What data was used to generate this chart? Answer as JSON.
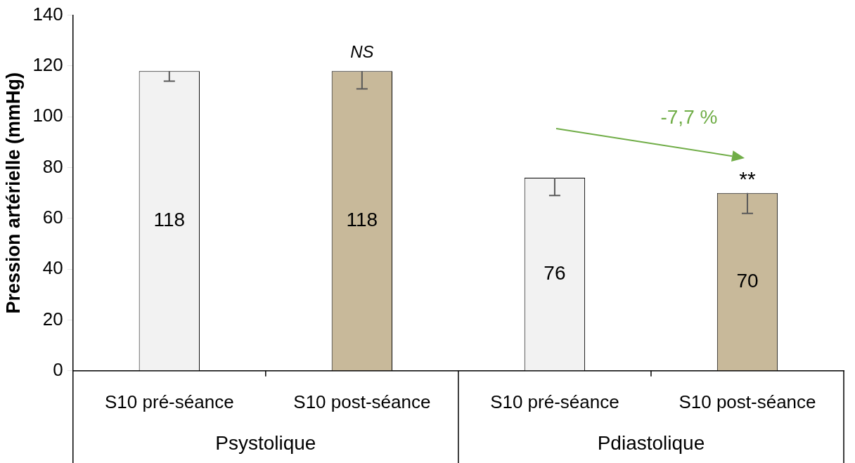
{
  "chart_data": {
    "type": "bar",
    "ylabel": "Pression artérielle (mmHg)",
    "categories": [
      "S10 pré-séance",
      "S10 post-séance",
      "S10 pré-séance",
      "S10 post-séance"
    ],
    "values": [
      118,
      118,
      76,
      70
    ],
    "colors": [
      "#f2f2f2",
      "#c8b99a",
      "#f2f2f2",
      "#c8b99a"
    ],
    "errors": [
      [
        114,
        118
      ],
      [
        111,
        118
      ],
      [
        69,
        76
      ],
      [
        62,
        70
      ]
    ],
    "ylim": [
      0,
      140
    ],
    "yticks": [
      0,
      20,
      40,
      60,
      80,
      100,
      120,
      140
    ],
    "grid": false,
    "legend": false,
    "data_labels": true,
    "annotations": [
      "NS",
      "**",
      "-7,7 %",
      "Psystolique",
      "Pdiastolique"
    ]
  }
}
